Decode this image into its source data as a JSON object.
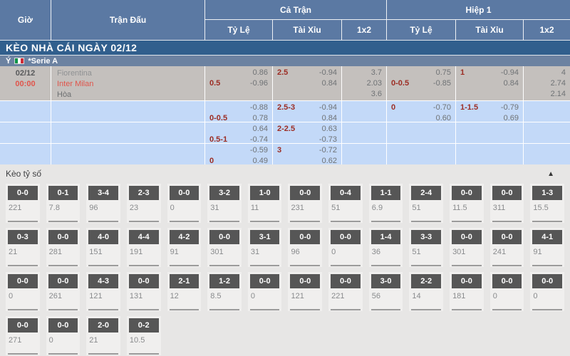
{
  "table_header": {
    "time": "Giờ",
    "match": "Trận Đấu",
    "full_time": "Cả Trận",
    "first_half": "Hiệp 1",
    "handicap": "Tỷ Lệ",
    "over_under": "Tài Xỉu",
    "one_x_two": "1x2"
  },
  "title_bar": "KÈO NHÀ CÁI NGÀY 02/12",
  "league": {
    "country": "Ý",
    "flag_icon": "italy-flag",
    "name": "*Serie A"
  },
  "match": {
    "date": "02/12",
    "time": "00:00",
    "home": "Fiorentina",
    "away": "Inter Milan",
    "draw": "Hòa"
  },
  "odds_rows": [
    {
      "full_hdp": {
        "tl": "",
        "tr": "0.86",
        "bl": "0.5",
        "br": "-0.96"
      },
      "full_ou": {
        "tl": "2.5",
        "tr": "-0.94",
        "bl": "",
        "br": "0.84"
      },
      "full_1x2": [
        "3.7",
        "2.03",
        "3.6"
      ],
      "h1_hdp": {
        "tl": "",
        "tr": "0.75",
        "bl": "0-0.5",
        "br": "-0.85"
      },
      "h1_ou": {
        "tl": "1",
        "tr": "-0.94",
        "bl": "",
        "br": "0.84"
      },
      "h1_1x2": [
        "4",
        "2.74",
        "2.14"
      ]
    },
    {
      "full_hdp": {
        "tl": "",
        "tr": "-0.88",
        "bl": "0-0.5",
        "br": "0.78"
      },
      "full_ou": {
        "tl": "2.5-3",
        "tr": "-0.94",
        "bl": "",
        "br": "0.84"
      },
      "full_1x2": [],
      "h1_hdp": {
        "tl": "0",
        "tr": "-0.70",
        "bl": "",
        "br": "0.60"
      },
      "h1_ou": {
        "tl": "1-1.5",
        "tr": "-0.79",
        "bl": "",
        "br": "0.69"
      },
      "h1_1x2": []
    },
    {
      "full_hdp": {
        "tl": "",
        "tr": "0.64",
        "bl": "0.5-1",
        "br": "-0.74"
      },
      "full_ou": {
        "tl": "2-2.5",
        "tr": "0.63",
        "bl": "",
        "br": "-0.73"
      },
      "full_1x2": [],
      "h1_hdp": {
        "tl": "",
        "tr": "",
        "bl": "",
        "br": ""
      },
      "h1_ou": {
        "tl": "",
        "tr": "",
        "bl": "",
        "br": ""
      },
      "h1_1x2": []
    },
    {
      "full_hdp": {
        "tl": "",
        "tr": "-0.59",
        "bl": "0",
        "br": "0.49"
      },
      "full_ou": {
        "tl": "3",
        "tr": "-0.72",
        "bl": "",
        "br": "0.62"
      },
      "full_1x2": [],
      "h1_hdp": {
        "tl": "",
        "tr": "",
        "bl": "",
        "br": ""
      },
      "h1_ou": {
        "tl": "",
        "tr": "",
        "bl": "",
        "br": ""
      },
      "h1_1x2": []
    }
  ],
  "score_section": {
    "title": "Kèo tỷ số",
    "collapse_icon": "▲",
    "rows": [
      [
        {
          "score": "0-0",
          "odds": "221"
        },
        {
          "score": "0-1",
          "odds": "7.8"
        },
        {
          "score": "3-4",
          "odds": "96"
        },
        {
          "score": "2-3",
          "odds": "23"
        },
        {
          "score": "0-0",
          "odds": "0"
        },
        {
          "score": "3-2",
          "odds": "31"
        },
        {
          "score": "1-0",
          "odds": "11"
        },
        {
          "score": "0-0",
          "odds": "231"
        },
        {
          "score": "0-4",
          "odds": "51"
        },
        {
          "score": "1-1",
          "odds": "6.9"
        },
        {
          "score": "2-4",
          "odds": "51"
        },
        {
          "score": "0-0",
          "odds": "11.5"
        },
        {
          "score": "0-0",
          "odds": "311"
        },
        {
          "score": "1-3",
          "odds": "15.5"
        }
      ],
      [
        {
          "score": "0-3",
          "odds": "21"
        },
        {
          "score": "0-0",
          "odds": "281"
        },
        {
          "score": "4-0",
          "odds": "151"
        },
        {
          "score": "4-4",
          "odds": "191"
        },
        {
          "score": "4-2",
          "odds": "91"
        },
        {
          "score": "0-0",
          "odds": "301"
        },
        {
          "score": "3-1",
          "odds": "31"
        },
        {
          "score": "0-0",
          "odds": "96"
        },
        {
          "score": "0-0",
          "odds": "0"
        },
        {
          "score": "1-4",
          "odds": "36"
        },
        {
          "score": "3-3",
          "odds": "51"
        },
        {
          "score": "0-0",
          "odds": "301"
        },
        {
          "score": "0-0",
          "odds": "241"
        },
        {
          "score": "4-1",
          "odds": "91"
        }
      ],
      [
        {
          "score": "0-0",
          "odds": "0"
        },
        {
          "score": "0-0",
          "odds": "261"
        },
        {
          "score": "4-3",
          "odds": "121"
        },
        {
          "score": "0-0",
          "odds": "131"
        },
        {
          "score": "2-1",
          "odds": "12"
        },
        {
          "score": "1-2",
          "odds": "8.5"
        },
        {
          "score": "0-0",
          "odds": "0"
        },
        {
          "score": "0-0",
          "odds": "121"
        },
        {
          "score": "0-0",
          "odds": "221"
        },
        {
          "score": "3-0",
          "odds": "56"
        },
        {
          "score": "2-2",
          "odds": "14"
        },
        {
          "score": "0-0",
          "odds": "181"
        },
        {
          "score": "0-0",
          "odds": "0"
        },
        {
          "score": "0-0",
          "odds": "0"
        }
      ],
      [
        {
          "score": "0-0",
          "odds": "271"
        },
        {
          "score": "0-0",
          "odds": "0"
        },
        {
          "score": "2-0",
          "odds": "21"
        },
        {
          "score": "0-2",
          "odds": "10.5"
        }
      ]
    ]
  },
  "colors": {
    "header_blue": "#5b79a3",
    "title_bar_blue": "#315f8d",
    "league_bar_blue": "#6c82a1",
    "row_gray": "#c4c0bd",
    "row_light_blue": "#c3d9f8",
    "accent_red": "#e0544b",
    "label_maroon": "#9c2d24",
    "score_box_gray": "#565656"
  }
}
